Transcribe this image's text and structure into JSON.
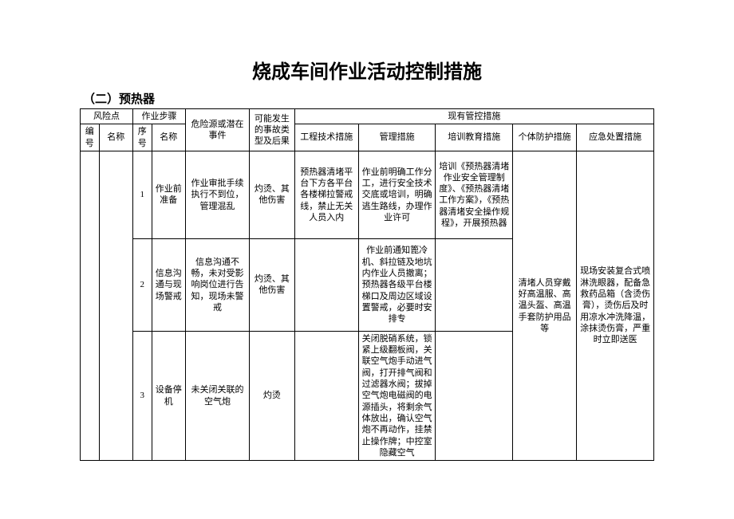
{
  "title": "烧成车间作业活动控制措施",
  "subtitle": "（二）预热器",
  "headers": {
    "risk_point": "风险点",
    "work_step": "作业步骤",
    "hazard": "危险源或潜在事件",
    "event": "可能发生的事故类型及后果",
    "controls": "现有管控措施",
    "seq": "编号",
    "name": "名称",
    "seq2": "序号",
    "name2": "名称",
    "eng": "工程技术措施",
    "mgmt": "管理措施",
    "train": "培训教育措施",
    "ppe": "个体防护措施",
    "emerg": "应急处置措施"
  },
  "rows": [
    {
      "seq2": "1",
      "step_name": "作业前准备",
      "hazard": "作业审批手续执行不到位，管理混乱",
      "event": "灼烫、其他伤害",
      "eng": "预热器清堵平台下方各平台各楼梯拉警戒线，禁止无关人员入内",
      "mgmt": "作业前明确工作分工，进行安全技术交底或培训，明确逃生路线，办理作业许可",
      "train": "培训《预热器清堵作业安全管理制度》、《预热器清堵工作方案》，《预热器清堵安全操作规程》，开展预热器",
      "ppe": "",
      "emerg": ""
    },
    {
      "seq2": "2",
      "step_name": "信息沟通与现场警戒",
      "hazard": "信息沟通不畅，未对受影响岗位进行告知，现场未警戒",
      "event": "灼烫、其他伤害",
      "eng": "",
      "mgmt": "作业前通知篦冷机、斜拉链及地坑内作业人员撤离；预热器各级平台楼梯口及周边区域设置警戒，必要时安排专",
      "train": "",
      "ppe": "",
      "emerg": ""
    },
    {
      "seq2": "3",
      "step_name": "设备停机",
      "hazard": "未关闭关联的空气炮",
      "event": "灼烫",
      "eng": "",
      "mgmt": "关闭脱硝系统，锁紧上级翻板阀，关联空气炮手动进气阀，打开排气阀和过滤器水阀；拔掉空气炮电磁阀的电源插头，将剩余气体放出，确认空气炮不再动作，挂禁止操作牌；中控室隐藏空气",
      "train": "",
      "ppe": "清堵人员穿戴好高温服、高温头盔、高温手套防护用品等",
      "emerg": "现场安装复合式喷淋洗眼器，配备急救药品箱（含烫伤膏），烫伤后及时用凉水冲洗降温，涂抹烫伤膏，严重时立即送医"
    }
  ]
}
